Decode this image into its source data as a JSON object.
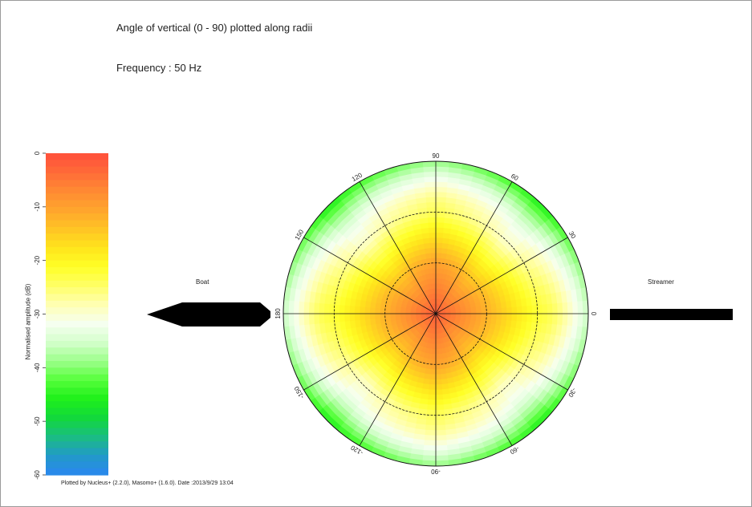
{
  "header": {
    "title": "Angle of vertical (0 -  90) plotted along radii",
    "frequency": "Frequency : 50 Hz"
  },
  "footer": {
    "credit": "Plotted by Nucleus+ (2.2.0), Masomo+ (1.6.0). Date :2013/9/29 13:04"
  },
  "labels": {
    "boat": "Boat",
    "streamer": "Streamer"
  },
  "chart_data": {
    "type": "heatmap",
    "projection": "polar",
    "title": "Angle of vertical (0 -  90) plotted along radii",
    "subtitle": "Frequency : 50 Hz",
    "radial_variable": "Angle of vertical (0 - 90)",
    "radial_range": [
      0,
      90
    ],
    "angular_tick_labels": [
      {
        "angle": 0,
        "label": "0"
      },
      {
        "angle": 30,
        "label": "30"
      },
      {
        "angle": 60,
        "label": "60"
      },
      {
        "angle": 90,
        "label": "90"
      },
      {
        "angle": 120,
        "label": "120"
      },
      {
        "angle": 150,
        "label": "150"
      },
      {
        "angle": 180,
        "label": "180"
      },
      {
        "angle": -150,
        "label": "-150"
      },
      {
        "angle": -120,
        "label": "-120"
      },
      {
        "angle": -90,
        "label": "-90"
      },
      {
        "angle": -60,
        "label": "-60"
      },
      {
        "angle": -30,
        "label": "-30"
      }
    ],
    "colorbar": {
      "label": "Normalised amplitude (dB)",
      "range": [
        -60,
        0
      ],
      "ticks": [
        "0",
        "-10",
        "-20",
        "-30",
        "-40",
        "-50",
        "-60"
      ],
      "tick_values": [
        0,
        -10,
        -20,
        -30,
        -40,
        -50,
        -60
      ],
      "colors": [
        "#ff4f3c",
        "#ff6a38",
        "#ff8a33",
        "#ffa52d",
        "#ffc425",
        "#ffe41c",
        "#ffff26",
        "#ffff66",
        "#ffffb2",
        "#f6fff0",
        "#d4ffcc",
        "#9cff8a",
        "#55ff3a",
        "#1ef01a",
        "#12d83c",
        "#1bbd82",
        "#2299c9",
        "#2a87f0"
      ]
    },
    "pattern_db": {
      "vertical_angle_0": -2,
      "vertical_angle_30_broadside": -12,
      "vertical_angle_30_diagonal": -20,
      "vertical_angle_60_broadside": -22,
      "vertical_angle_60_diagonal": -30,
      "vertical_angle_90_broadside": -36,
      "vertical_angle_90_diagonal": -46
    }
  }
}
